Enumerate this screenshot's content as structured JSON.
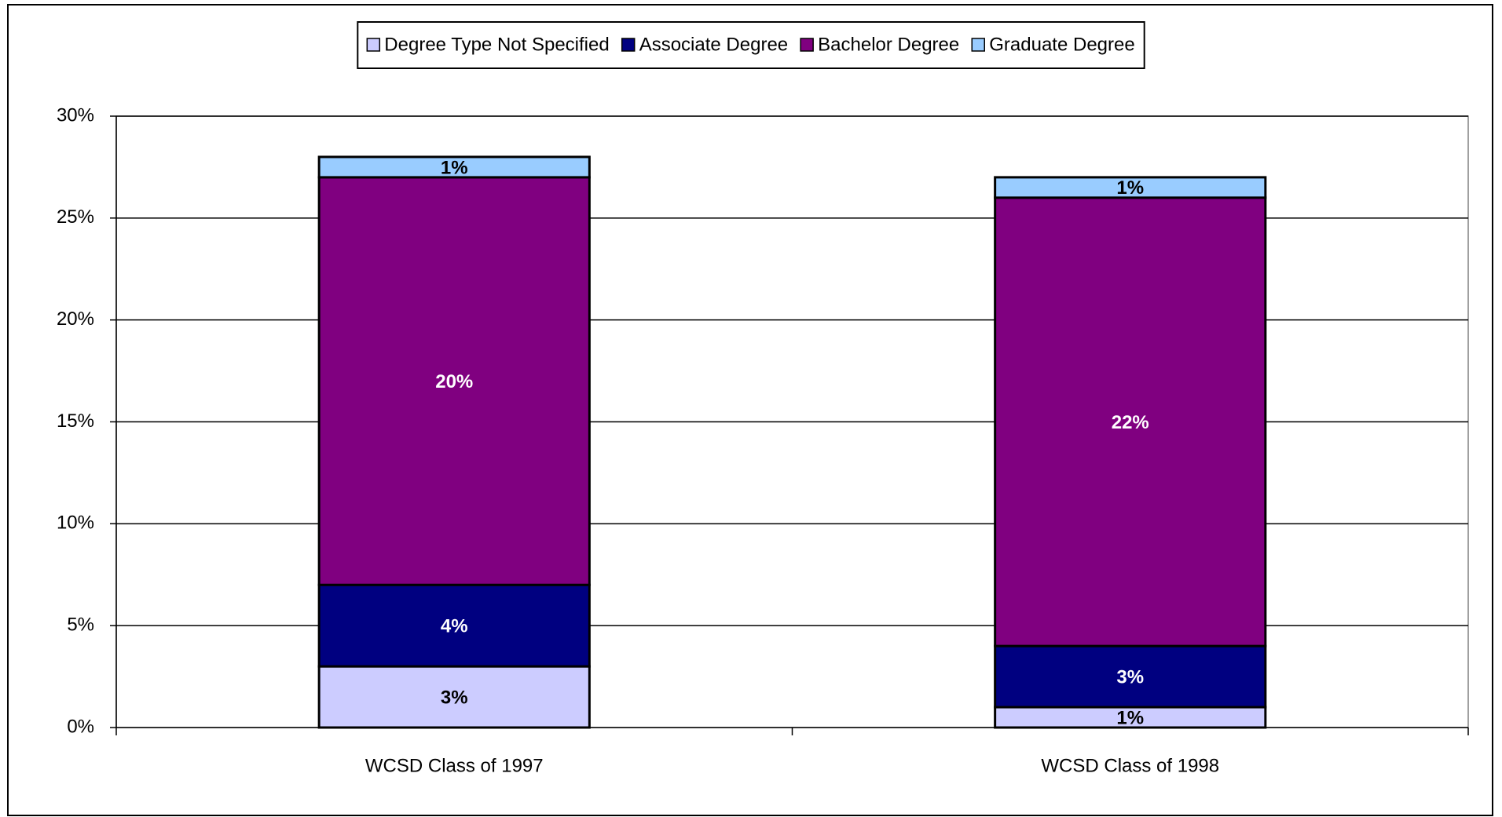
{
  "chart_data": {
    "type": "stacked_bar",
    "categories": [
      "WCSD Class of 1997",
      "WCSD Class of 1998"
    ],
    "series": [
      {
        "name": "Degree Type Not Specified",
        "color": "#ccccff",
        "values": [
          3,
          1
        ],
        "value_labels": [
          "3%",
          "1%"
        ]
      },
      {
        "name": "Associate Degree",
        "color": "#000080",
        "values": [
          4,
          3
        ],
        "value_labels": [
          "4%",
          "3%"
        ]
      },
      {
        "name": "Bachelor Degree",
        "color": "#800080",
        "values": [
          20,
          22
        ],
        "value_labels": [
          "20%",
          "22%"
        ]
      },
      {
        "name": "Graduate Degree",
        "color": "#99ccff",
        "values": [
          1,
          1
        ],
        "value_labels": [
          "1%",
          "1%"
        ]
      }
    ],
    "ylim": [
      0,
      30
    ],
    "yticks": [
      {
        "value": 0,
        "label": "0%"
      },
      {
        "value": 5,
        "label": "5%"
      },
      {
        "value": 10,
        "label": "10%"
      },
      {
        "value": 15,
        "label": "15%"
      },
      {
        "value": 20,
        "label": "20%"
      },
      {
        "value": 25,
        "label": "25%"
      },
      {
        "value": 30,
        "label": "30%"
      }
    ],
    "grid": true,
    "legend": "top"
  }
}
